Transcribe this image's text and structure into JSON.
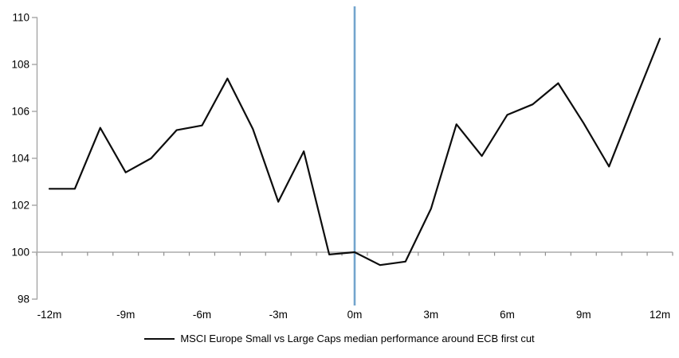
{
  "chart_data": {
    "type": "line",
    "title": "",
    "xlabel": "",
    "ylabel": "",
    "x": [
      -12,
      -11,
      -10,
      -9,
      -8,
      -7,
      -6,
      -5,
      -4,
      -3,
      -2,
      -1,
      0,
      1,
      2,
      3,
      4,
      5,
      6,
      7,
      8,
      9,
      10,
      11,
      12
    ],
    "series": [
      {
        "name": "MSCI Europe Small vs Large Caps median performance around ECB first cut",
        "color": "#0d0d0d",
        "values": [
          102.7,
          102.7,
          105.3,
          103.4,
          104.0,
          105.2,
          105.4,
          107.4,
          105.25,
          102.15,
          104.3,
          99.9,
          100.0,
          99.45,
          99.6,
          101.85,
          105.45,
          104.1,
          105.85,
          106.3,
          107.2,
          105.5,
          103.65,
          106.4,
          109.1
        ]
      }
    ],
    "xlim": [
      -12.5,
      12.5
    ],
    "ylim": [
      98,
      110
    ],
    "y_ticks": [
      110,
      108,
      106,
      104,
      102,
      100,
      98
    ],
    "x_tick_months": [
      -12,
      -9,
      -6,
      -3,
      0,
      3,
      6,
      9,
      12
    ],
    "x_tick_labels": [
      "-12m",
      "-9m",
      "-6m",
      "-3m",
      "0m",
      "3m",
      "6m",
      "9m",
      "12m"
    ],
    "minor_tick_step_months": 1,
    "baseline_y": 100,
    "event_line_x": 0,
    "grid": "off",
    "legend_position": "bottom-center",
    "colors": {
      "y_axis": "#a6a6a6",
      "baseline": "#ababab",
      "minor_tick": "#8f8f8f",
      "event_line": "#73a5cd",
      "series": "#0d0d0d",
      "text": "#000000",
      "background": "#ffffff"
    }
  },
  "legend": {
    "label": "MSCI Europe Small vs Large Caps median performance around ECB first cut"
  }
}
